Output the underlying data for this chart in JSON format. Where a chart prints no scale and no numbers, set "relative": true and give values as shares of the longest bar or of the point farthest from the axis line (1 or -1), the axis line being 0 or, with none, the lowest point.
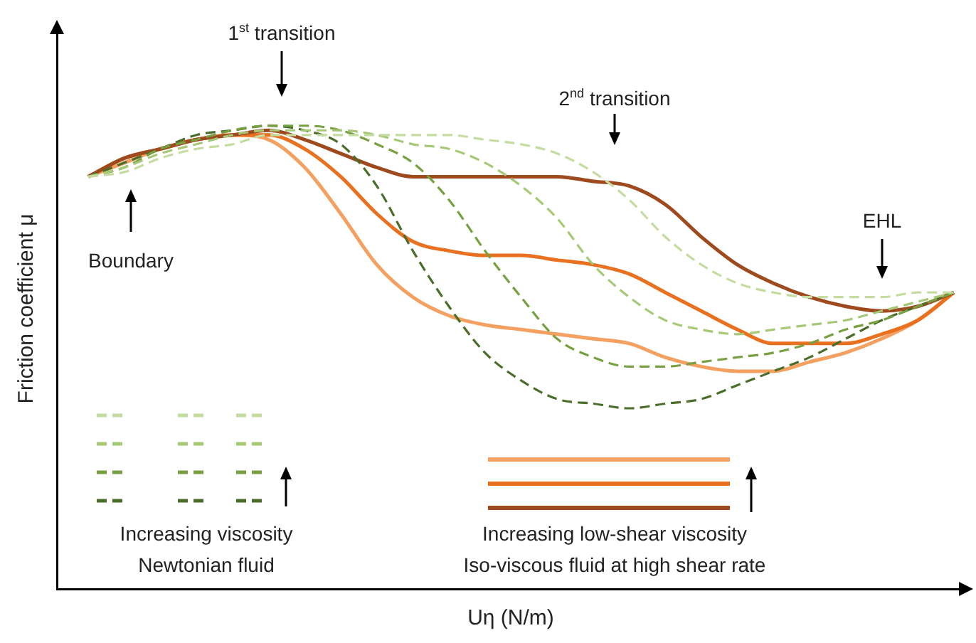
{
  "chart_data": {
    "type": "line",
    "relative": true,
    "xlabel": "Uη (N/m)",
    "ylabel": "Friction coefficient μ",
    "categories": [
      null,
      null,
      null,
      null,
      null,
      null,
      null,
      null,
      null,
      null,
      null,
      null,
      null,
      null,
      null,
      null,
      null,
      null,
      null,
      null,
      null,
      null,
      null,
      null,
      null
    ],
    "series": [
      {
        "color": "#c5dca0",
        "line_style": "dashed",
        "values": [
          0.89,
          0.9,
          0.93,
          0.95,
          0.96,
          0.98,
          0.98,
          0.98,
          0.98,
          0.98,
          0.98,
          0.97,
          0.96,
          0.94,
          0.9,
          0.84,
          0.76,
          0.7,
          0.66,
          0.64,
          0.63,
          0.63,
          0.63,
          0.64,
          0.64
        ]
      },
      {
        "color": "#a6c977",
        "line_style": "dashed",
        "values": [
          0.89,
          0.91,
          0.94,
          0.96,
          0.98,
          0.99,
          0.99,
          0.99,
          0.98,
          0.96,
          0.95,
          0.92,
          0.87,
          0.8,
          0.7,
          0.63,
          0.58,
          0.56,
          0.55,
          0.56,
          0.57,
          0.58,
          0.6,
          0.62,
          0.64
        ]
      },
      {
        "color": "#77a040",
        "line_style": "dashed",
        "values": [
          0.89,
          0.91,
          0.95,
          0.97,
          0.99,
          1.0,
          1.0,
          0.99,
          0.96,
          0.92,
          0.84,
          0.73,
          0.63,
          0.54,
          0.5,
          0.48,
          0.48,
          0.49,
          0.5,
          0.51,
          0.53,
          0.56,
          0.58,
          0.61,
          0.64
        ]
      },
      {
        "color": "#4a6e2a",
        "line_style": "dashed",
        "values": [
          0.89,
          0.92,
          0.95,
          0.98,
          0.99,
          1,
          0.99,
          0.96,
          0.87,
          0.73,
          0.61,
          0.51,
          0.45,
          0.41,
          0.4,
          0.39,
          0.4,
          0.41,
          0.44,
          0.47,
          0.5,
          0.54,
          0.58,
          0.61,
          0.64
        ]
      },
      {
        "color": "#9e4a1e",
        "line_style": "solid",
        "values": [
          0.89,
          0.93,
          0.95,
          0.97,
          0.98,
          0.99,
          0.97,
          0.94,
          0.91,
          0.89,
          0.89,
          0.89,
          0.89,
          0.89,
          0.88,
          0.87,
          0.83,
          0.76,
          0.7,
          0.66,
          0.63,
          0.61,
          0.6,
          0.61,
          0.64
        ]
      },
      {
        "color": "#e8701e",
        "line_style": "solid",
        "values": [
          0.89,
          0.93,
          0.95,
          0.97,
          0.98,
          0.98,
          0.95,
          0.89,
          0.81,
          0.75,
          0.73,
          0.72,
          0.72,
          0.71,
          0.7,
          0.68,
          0.64,
          0.6,
          0.56,
          0.53,
          0.53,
          0.53,
          0.55,
          0.58,
          0.64
        ]
      },
      {
        "color": "#f4a060",
        "line_style": "solid",
        "values": [
          0.89,
          0.92,
          0.95,
          0.97,
          0.98,
          0.97,
          0.91,
          0.81,
          0.7,
          0.63,
          0.59,
          0.57,
          0.56,
          0.55,
          0.54,
          0.53,
          0.5,
          0.48,
          0.47,
          0.47,
          0.49,
          0.51,
          0.54,
          0.58,
          0.64
        ]
      }
    ],
    "annotations": [
      "1$^{st}$ transition",
      "2$^{nd}$ transition",
      "Boundary",
      "EHL",
      "Increasing viscosity",
      "Newtonian fluid",
      "Increasing low-shear viscosity",
      "Iso-viscous fluid at high shear rate"
    ]
  }
}
